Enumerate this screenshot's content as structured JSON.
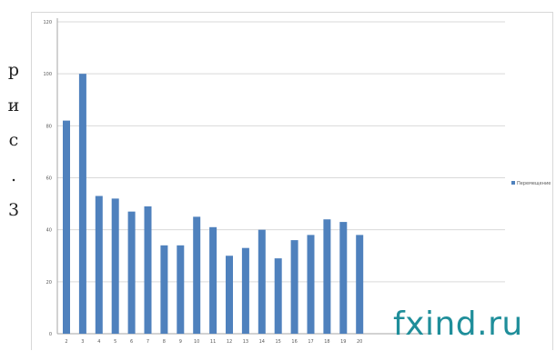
{
  "caption": {
    "chars": [
      "р",
      "и",
      "с",
      ".",
      "3"
    ]
  },
  "watermark": "fxind.ru",
  "colors": {
    "bar": "#4f81bd",
    "grid": "#d9d9d9",
    "axis": "#a6a6a6",
    "text": "#595959",
    "watermark": "#1f8e9a"
  },
  "chart_data": {
    "type": "bar",
    "title": "",
    "xlabel": "",
    "ylabel": "",
    "ylim": [
      0,
      120
    ],
    "yticks": [
      0,
      20,
      40,
      60,
      80,
      100,
      120
    ],
    "grid": true,
    "legend": {
      "placement": "right",
      "entries": [
        "Перемещение"
      ]
    },
    "categories": [
      "2",
      "3",
      "4",
      "5",
      "6",
      "7",
      "8",
      "9",
      "10",
      "11",
      "12",
      "13",
      "14",
      "15",
      "16",
      "17",
      "18",
      "19",
      "20"
    ],
    "series": [
      {
        "name": "Перемещение",
        "values": [
          82,
          100,
          53,
          52,
          47,
          49,
          34,
          34,
          45,
          41,
          30,
          33,
          40,
          29,
          36,
          38,
          44,
          43,
          38
        ]
      }
    ]
  }
}
